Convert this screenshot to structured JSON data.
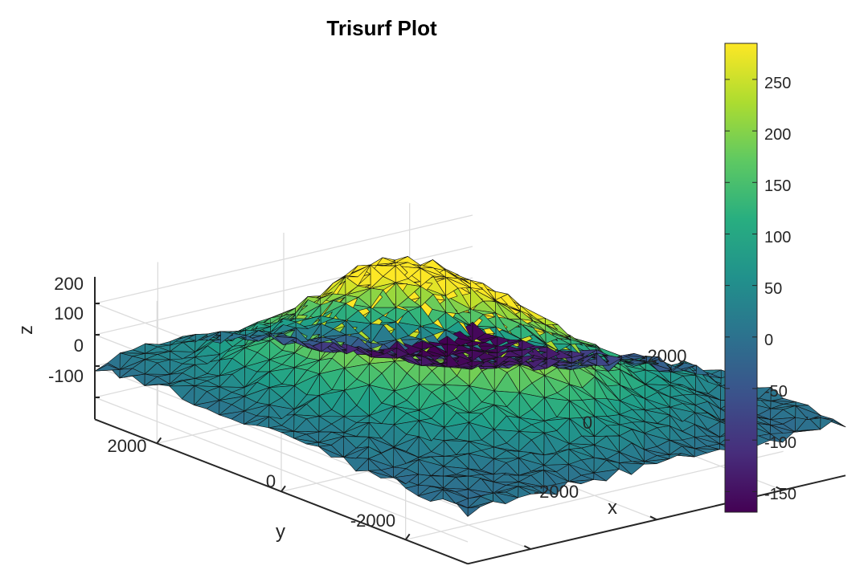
{
  "chart_data": {
    "type": "trisurf",
    "title": "Trisurf Plot",
    "xlabel": "x",
    "ylabel": "y",
    "zlabel": "z",
    "x_ticks": [
      "-2000",
      "0",
      "2000"
    ],
    "y_ticks": [
      "2000",
      "0",
      "-2000"
    ],
    "z_ticks": [
      "-100",
      "0",
      "100",
      "200"
    ],
    "xlim": [
      -3000,
      3000
    ],
    "ylim": [
      -3000,
      3000
    ],
    "zlim": [
      -170,
      285
    ],
    "colormap": "viridis",
    "clim": [
      -170,
      285
    ],
    "colorbar_ticks": [
      "-150",
      "-100",
      "-50",
      "0",
      "50",
      "100",
      "150",
      "200",
      "250"
    ],
    "grid": true,
    "surface_features": [
      {
        "x": -600,
        "y": 900,
        "z": 285,
        "spread": 900
      },
      {
        "x": -100,
        "y": -100,
        "z": 190,
        "spread": 1100
      },
      {
        "x": 400,
        "y": -900,
        "z": 110,
        "spread": 900
      },
      {
        "x": 2200,
        "y": -1000,
        "z": 60,
        "spread": 500
      },
      {
        "x": -1800,
        "y": 2200,
        "z": 50,
        "spread": 700
      },
      {
        "x": 2200,
        "y": 2800,
        "z": -170,
        "spread": 1800
      }
    ]
  }
}
